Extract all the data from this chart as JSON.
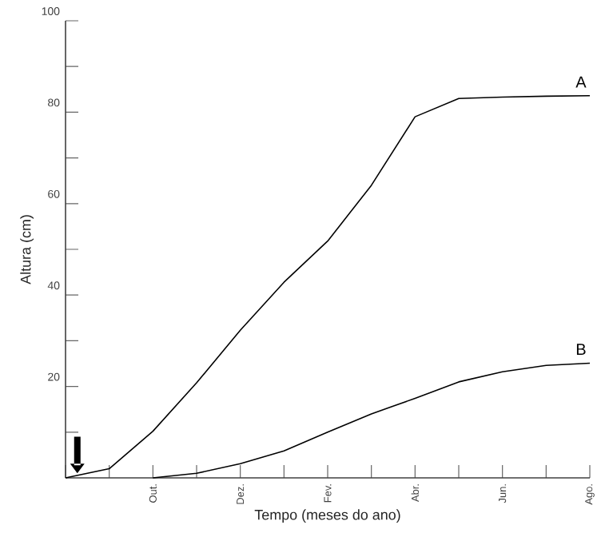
{
  "chart_data": {
    "type": "line",
    "xlabel": "Tempo (meses do ano)",
    "ylabel": "Altura (cm)",
    "categories": [
      null,
      null,
      "Out.",
      null,
      "Dez.",
      null,
      "Fev.",
      null,
      "Abr.",
      null,
      "Jun.",
      null,
      "Ago."
    ],
    "ylim": [
      0,
      100
    ],
    "yticks": [
      {
        "value": 10,
        "label": null
      },
      20,
      {
        "value": 30,
        "label": null
      },
      40,
      {
        "value": 50,
        "label": null
      },
      60,
      {
        "value": 70,
        "label": null
      },
      80,
      {
        "value": 90,
        "label": null
      },
      100
    ],
    "series": [
      {
        "name": "A",
        "color": "#000000",
        "values": [
          0,
          2,
          10.2,
          20.8,
          32.3,
          42.8,
          51.8,
          64,
          79,
          83,
          83.3,
          83.5,
          83.6
        ]
      },
      {
        "name": "B",
        "color": "#000000",
        "values": [
          null,
          null,
          0,
          1,
          3.1,
          5.9,
          10,
          14,
          17.4,
          21,
          23.2,
          24.6,
          25.1
        ]
      }
    ],
    "legend": false,
    "grid": false,
    "line_style": "solid"
  }
}
